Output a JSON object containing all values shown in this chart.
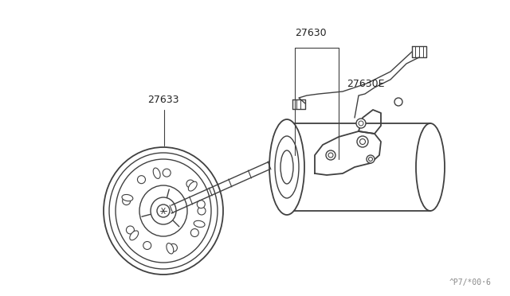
{
  "background_color": "#ffffff",
  "line_color": "#404040",
  "label_color": "#222222",
  "fig_width": 6.4,
  "fig_height": 3.72,
  "dpi": 100,
  "label_27630": "27630",
  "label_27630E": "27630E",
  "label_27633": "27633",
  "watermark": "^P7/*00·6",
  "watermark_fontsize": 7
}
